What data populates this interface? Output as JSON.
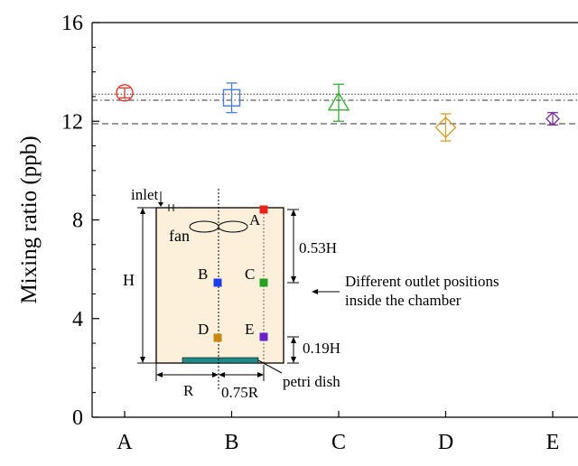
{
  "chart_data": {
    "type": "scatter",
    "categories": [
      "A",
      "B",
      "C",
      "D",
      "E"
    ],
    "ylabel": "Mixing ratio (ppb)",
    "xlabel": "",
    "ylim": [
      0,
      16
    ],
    "yticks": [
      0,
      4,
      8,
      12,
      16
    ],
    "y_minor_step": 1,
    "grid": false,
    "points": [
      {
        "category": "A",
        "value": 13.15,
        "err": 0.2,
        "marker": "circle",
        "color": "#e8312f"
      },
      {
        "category": "B",
        "value": 12.95,
        "err": 0.6,
        "marker": "square",
        "color": "#4a7bd0"
      },
      {
        "category": "C",
        "value": 12.75,
        "err": 0.75,
        "marker": "triangle",
        "color": "#3aaa35"
      },
      {
        "category": "D",
        "value": 11.75,
        "err": 0.55,
        "marker": "diamond",
        "color": "#d9a030"
      },
      {
        "category": "E",
        "value": 12.1,
        "err": 0.25,
        "marker": "diamond",
        "color": "#7a3a9a"
      }
    ],
    "reference_lines": [
      {
        "value": 13.1,
        "style": "dotted"
      },
      {
        "value": 12.85,
        "style": "dash-dot"
      },
      {
        "value": 11.9,
        "style": "dashed"
      }
    ]
  },
  "inset": {
    "background": "#fdf0da",
    "dish_color": "#1f8a86",
    "labels": {
      "inlet": "inlet",
      "fan": "fan",
      "height": "H",
      "upper_dim": "0.53H",
      "lower_dim": "0.19H",
      "radius": "R",
      "offset": "0.75R",
      "dish": "petri dish",
      "note_line1": "Different outlet positions",
      "note_line2": "inside the chamber"
    },
    "outlets": [
      {
        "label": "A",
        "color": "#e8231d"
      },
      {
        "label": "B",
        "color": "#1f3bf0"
      },
      {
        "label": "C",
        "color": "#27a027"
      },
      {
        "label": "D",
        "color": "#c98a12"
      },
      {
        "label": "E",
        "color": "#6a22c8"
      }
    ]
  }
}
